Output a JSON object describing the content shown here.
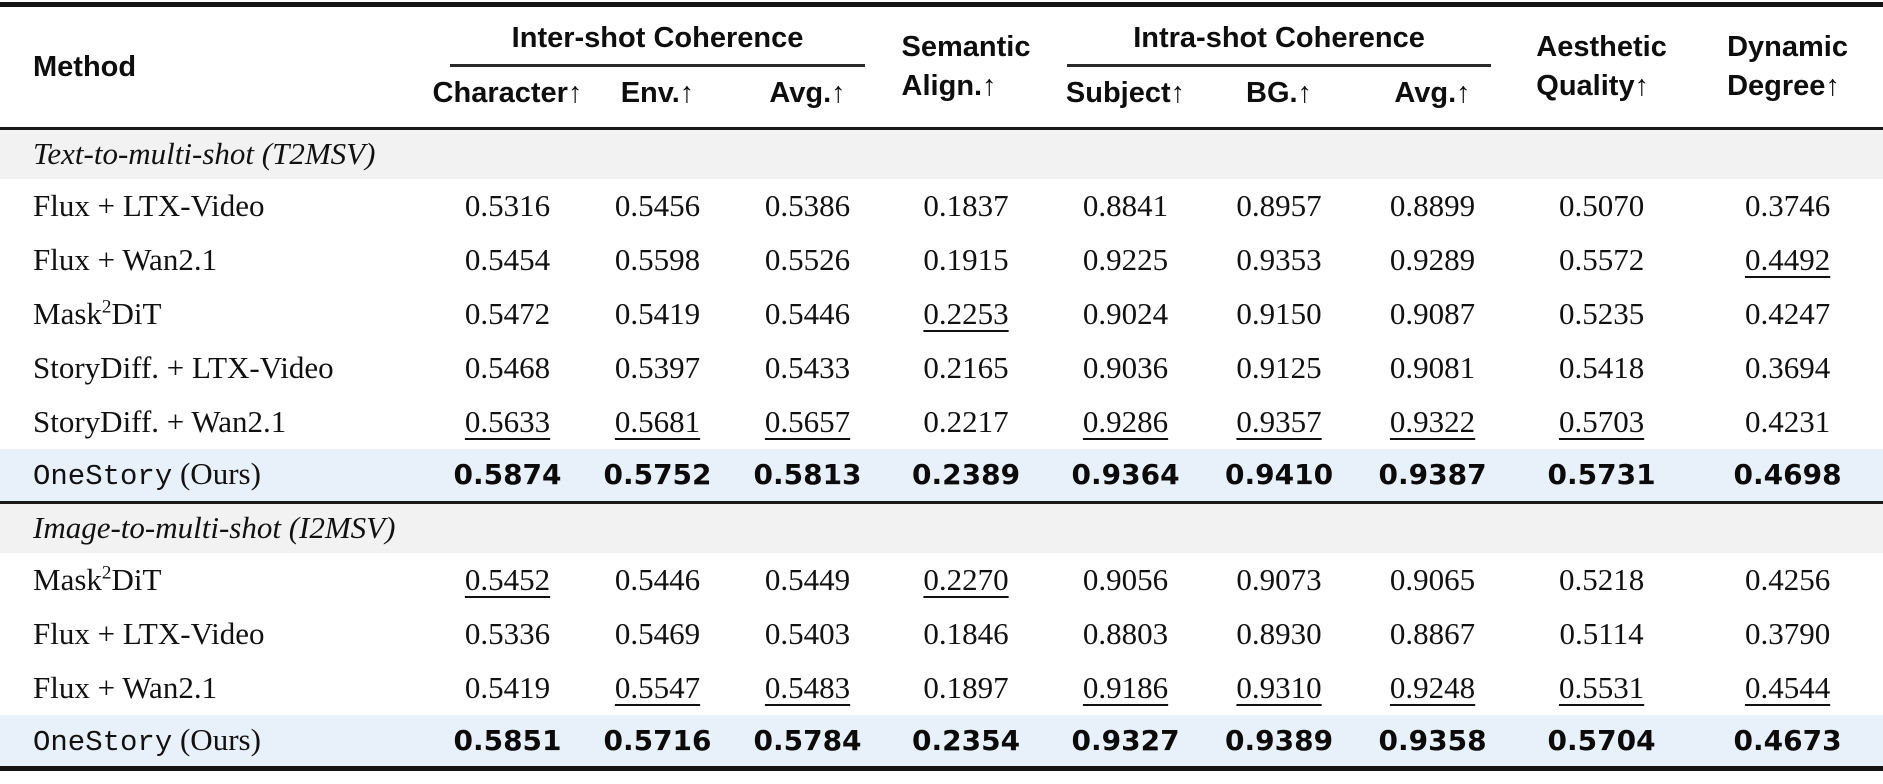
{
  "header": {
    "method": "Method",
    "groups": [
      {
        "label": "Inter-shot Coherence",
        "cols": [
          "Character↑",
          "Env.↑",
          "Avg.↑"
        ]
      },
      {
        "label": "Intra-shot Coherence",
        "cols": [
          "Subject↑",
          "BG.↑",
          "Avg.↑"
        ]
      }
    ],
    "semantic": {
      "line1": "Semantic",
      "line2": "Align.↑"
    },
    "aesthetic": {
      "line1": "Aesthetic",
      "line2": "Quality↑"
    },
    "dynamic": {
      "line1": "Dynamic",
      "line2": "Degree↑"
    }
  },
  "colors": {
    "highlight_row": "#e8f1fa",
    "section_band": "#f2f2f2",
    "rule": "#141414"
  },
  "sections": [
    {
      "title": "Text-to-multi-shot (T2MSV)",
      "rows": [
        {
          "method": [
            {
              "t": "Flux + LTX-Video"
            }
          ],
          "values": [
            "0.5316",
            "0.5456",
            "0.5386",
            "0.1837",
            "0.8841",
            "0.8957",
            "0.8899",
            "0.5070",
            "0.3746"
          ],
          "underline": [],
          "bold": false,
          "highlight": false
        },
        {
          "method": [
            {
              "t": "Flux + Wan2.1"
            }
          ],
          "values": [
            "0.5454",
            "0.5598",
            "0.5526",
            "0.1915",
            "0.9225",
            "0.9353",
            "0.9289",
            "0.5572",
            "0.4492"
          ],
          "underline": [
            8
          ],
          "bold": false,
          "highlight": false
        },
        {
          "method": [
            {
              "t": "Mask"
            },
            {
              "t": "2",
              "sup": true
            },
            {
              "t": "DiT"
            }
          ],
          "values": [
            "0.5472",
            "0.5419",
            "0.5446",
            "0.2253",
            "0.9024",
            "0.9150",
            "0.9087",
            "0.5235",
            "0.4247"
          ],
          "underline": [
            3
          ],
          "bold": false,
          "highlight": false
        },
        {
          "method": [
            {
              "t": "StoryDiff. + LTX-Video"
            }
          ],
          "values": [
            "0.5468",
            "0.5397",
            "0.5433",
            "0.2165",
            "0.9036",
            "0.9125",
            "0.9081",
            "0.5418",
            "0.3694"
          ],
          "underline": [],
          "bold": false,
          "highlight": false
        },
        {
          "method": [
            {
              "t": "StoryDiff. + Wan2.1"
            }
          ],
          "values": [
            "0.5633",
            "0.5681",
            "0.5657",
            "0.2217",
            "0.9286",
            "0.9357",
            "0.9322",
            "0.5703",
            "0.4231"
          ],
          "underline": [
            0,
            1,
            2,
            4,
            5,
            6,
            7
          ],
          "bold": false,
          "highlight": false
        },
        {
          "method": [
            {
              "t": "OneStory",
              "mono": true
            },
            {
              "t": " (Ours)"
            }
          ],
          "values": [
            "0.5874",
            "0.5752",
            "0.5813",
            "0.2389",
            "0.9364",
            "0.9410",
            "0.9387",
            "0.5731",
            "0.4698"
          ],
          "underline": [],
          "bold": true,
          "highlight": true
        }
      ]
    },
    {
      "title": "Image-to-multi-shot (I2MSV)",
      "rows": [
        {
          "method": [
            {
              "t": "Mask"
            },
            {
              "t": "2",
              "sup": true
            },
            {
              "t": "DiT"
            }
          ],
          "values": [
            "0.5452",
            "0.5446",
            "0.5449",
            "0.2270",
            "0.9056",
            "0.9073",
            "0.9065",
            "0.5218",
            "0.4256"
          ],
          "underline": [
            0,
            3
          ],
          "bold": false,
          "highlight": false
        },
        {
          "method": [
            {
              "t": "Flux + LTX-Video"
            }
          ],
          "values": [
            "0.5336",
            "0.5469",
            "0.5403",
            "0.1846",
            "0.8803",
            "0.8930",
            "0.8867",
            "0.5114",
            "0.3790"
          ],
          "underline": [],
          "bold": false,
          "highlight": false
        },
        {
          "method": [
            {
              "t": "Flux + Wan2.1"
            }
          ],
          "values": [
            "0.5419",
            "0.5547",
            "0.5483",
            "0.1897",
            "0.9186",
            "0.9310",
            "0.9248",
            "0.5531",
            "0.4544"
          ],
          "underline": [
            1,
            2,
            4,
            5,
            6,
            7,
            8
          ],
          "bold": false,
          "highlight": false
        },
        {
          "method": [
            {
              "t": "OneStory",
              "mono": true
            },
            {
              "t": " (Ours)"
            }
          ],
          "values": [
            "0.5851",
            "0.5716",
            "0.5784",
            "0.2354",
            "0.9327",
            "0.9389",
            "0.9358",
            "0.5704",
            "0.4673"
          ],
          "underline": [],
          "bold": true,
          "highlight": true
        }
      ]
    }
  ]
}
